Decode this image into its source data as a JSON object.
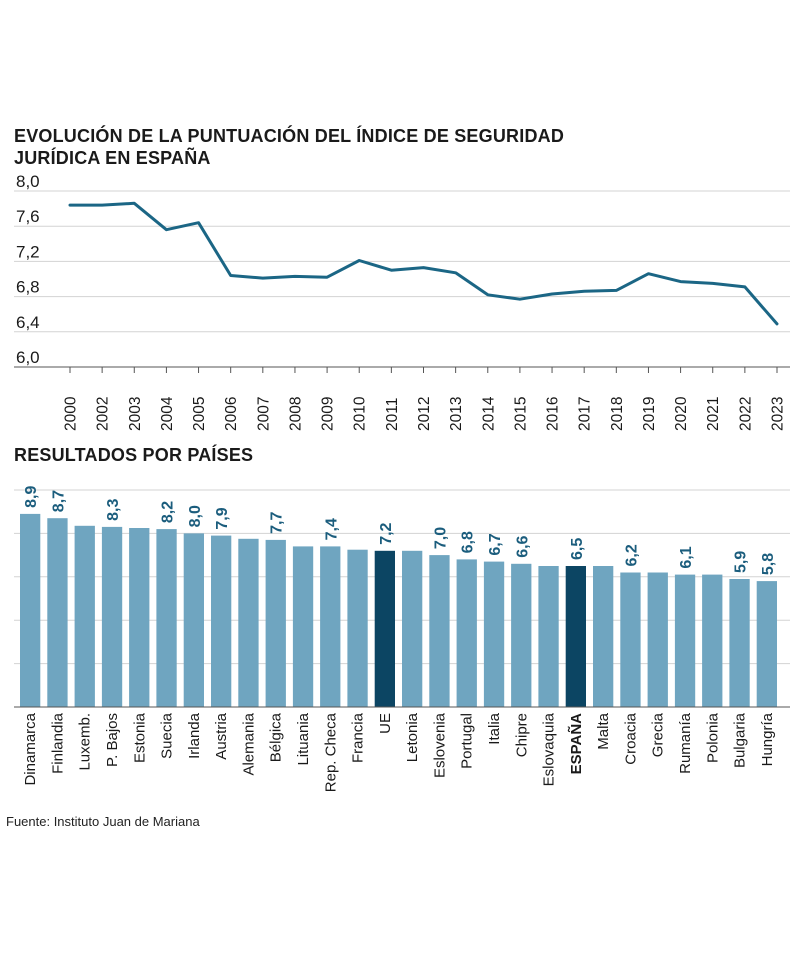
{
  "source": "Fuente: Instituto Juan de Mariana",
  "colors": {
    "line": "#1b6685",
    "bar": "#6fa5c0",
    "bar_highlight": "#0c4563",
    "label": "#1b5d7d",
    "grid": "#d3d3d3"
  },
  "chart_data": [
    {
      "type": "line",
      "title": "EVOLUCIÓN DE LA PUNTUACIÓN DEL ÍNDICE DE SEGURIDAD JURÍDICA EN ESPAÑA",
      "x": [
        "2000",
        "2002",
        "2003",
        "2004",
        "2005",
        "2006",
        "2007",
        "2008",
        "2009",
        "2010",
        "2011",
        "2012",
        "2013",
        "2014",
        "2015",
        "2016",
        "2017",
        "2018",
        "2019",
        "2020",
        "2021",
        "2022",
        "2023"
      ],
      "values": [
        7.84,
        7.84,
        7.86,
        7.56,
        7.64,
        7.04,
        7.01,
        7.03,
        7.02,
        7.21,
        7.1,
        7.13,
        7.07,
        6.82,
        6.77,
        6.83,
        6.86,
        6.87,
        7.06,
        6.97,
        6.95,
        6.91,
        6.49
      ],
      "yticks": [
        "8,0",
        "7,6",
        "7,2",
        "6,8",
        "6,4",
        "6,0"
      ],
      "ylim": [
        6.0,
        8.0
      ],
      "grid": true
    },
    {
      "type": "bar",
      "title": "RESULTADOS POR PAÍSES",
      "categories": [
        "Dinamarca",
        "Finlandia",
        "Luxemb.",
        "P. Bajos",
        "Estonia",
        "Suecia",
        "Irlanda",
        "Austria",
        "Alemania",
        "Bélgica",
        "Lituania",
        "Rep. Checa",
        "Francia",
        "UE",
        "Letonia",
        "Eslovenia",
        "Portugal",
        "Italia",
        "Chipre",
        "Eslovaquia",
        "ESPAÑA",
        "Malta",
        "Croacia",
        "Grecia",
        "Rumanía",
        "Polonia",
        "Bulgaria",
        "Hungría"
      ],
      "values": [
        8.9,
        8.7,
        8.35,
        8.3,
        8.25,
        8.2,
        8.0,
        7.9,
        7.75,
        7.7,
        7.4,
        7.4,
        7.25,
        7.2,
        7.2,
        7.0,
        6.8,
        6.7,
        6.6,
        6.5,
        6.5,
        6.5,
        6.2,
        6.2,
        6.1,
        6.1,
        5.9,
        5.8
      ],
      "labels": [
        "8,9",
        "8,7",
        "",
        "8,3",
        "",
        "8,2",
        "8,0",
        "7,9",
        "",
        "7,7",
        "",
        "7,4",
        "",
        "7,2",
        "",
        "7,0",
        "6,8",
        "6,7",
        "6,6",
        "",
        "6,5",
        "",
        "6,2",
        "",
        "6,1",
        "",
        "5,9",
        "5,8"
      ],
      "highlight": [
        "UE",
        "ESPAÑA"
      ],
      "bold_category": "ESPAÑA",
      "ylim": [
        0,
        10
      ],
      "grid": true
    }
  ]
}
